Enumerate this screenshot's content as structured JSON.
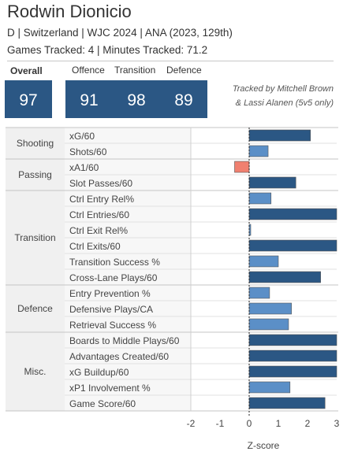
{
  "player": {
    "name": "Rodwin Dionicio",
    "line1": "D | Switzerland | WJC 2024 | ANA (2023, 129th)",
    "line2": "Games Tracked: 4 | Minutes Tracked: 71.2"
  },
  "summary": {
    "overall_label": "Overall",
    "overall_value": "97",
    "offence_label": "Offence",
    "offence_value": "91",
    "transition_label": "Transition",
    "transition_value": "98",
    "defence_label": "Defence",
    "defence_value": "89"
  },
  "credit": {
    "line1": "Tracked by Mitchell Brown",
    "line2": "& Lassi Alanen (5v5 only)"
  },
  "colors": {
    "box": "#2b5784",
    "positive_strong": "#2b5784",
    "positive_light": "#5b8fc7",
    "negative": "#f08070"
  },
  "chart_data": {
    "type": "bar",
    "orientation": "horizontal",
    "xlabel": "Z-score",
    "xlim": [
      -2.5,
      3
    ],
    "xticks": [
      -2,
      -1,
      0,
      1,
      2,
      3
    ],
    "zero_line": "dashed",
    "groups": [
      {
        "name": "Shooting",
        "metrics": [
          {
            "label": "xG/60",
            "value": 2.1
          },
          {
            "label": "Shots/60",
            "value": 0.65
          }
        ]
      },
      {
        "name": "Passing",
        "metrics": [
          {
            "label": "xA1/60",
            "value": -0.5
          },
          {
            "label": "Slot Passes/60",
            "value": 1.6
          }
        ]
      },
      {
        "name": "Transition",
        "metrics": [
          {
            "label": "Ctrl Entry Rel%",
            "value": 0.75
          },
          {
            "label": "Ctrl Entries/60",
            "value": 3
          },
          {
            "label": "Ctrl Exit Rel%",
            "value": 0.03
          },
          {
            "label": "Ctrl Exits/60",
            "value": 3
          },
          {
            "label": "Transition Success %",
            "value": 1.0
          },
          {
            "label": "Cross-Lane Plays/60",
            "value": 2.45
          }
        ]
      },
      {
        "name": "Defence",
        "metrics": [
          {
            "label": "Entry Prevention %",
            "value": 0.7
          },
          {
            "label": "Defensive Plays/CA",
            "value": 1.45
          },
          {
            "label": "Retrieval Success %",
            "value": 1.35
          }
        ]
      },
      {
        "name": "Misc.",
        "metrics": [
          {
            "label": "Boards to Middle Plays/60",
            "value": 3
          },
          {
            "label": "Advantages Created/60",
            "value": 3
          },
          {
            "label": "xG Buildup/60",
            "value": 3
          },
          {
            "label": "xP1 Involvement %",
            "value": 1.4
          },
          {
            "label": "Game Score/60",
            "value": 2.6
          }
        ]
      }
    ]
  }
}
